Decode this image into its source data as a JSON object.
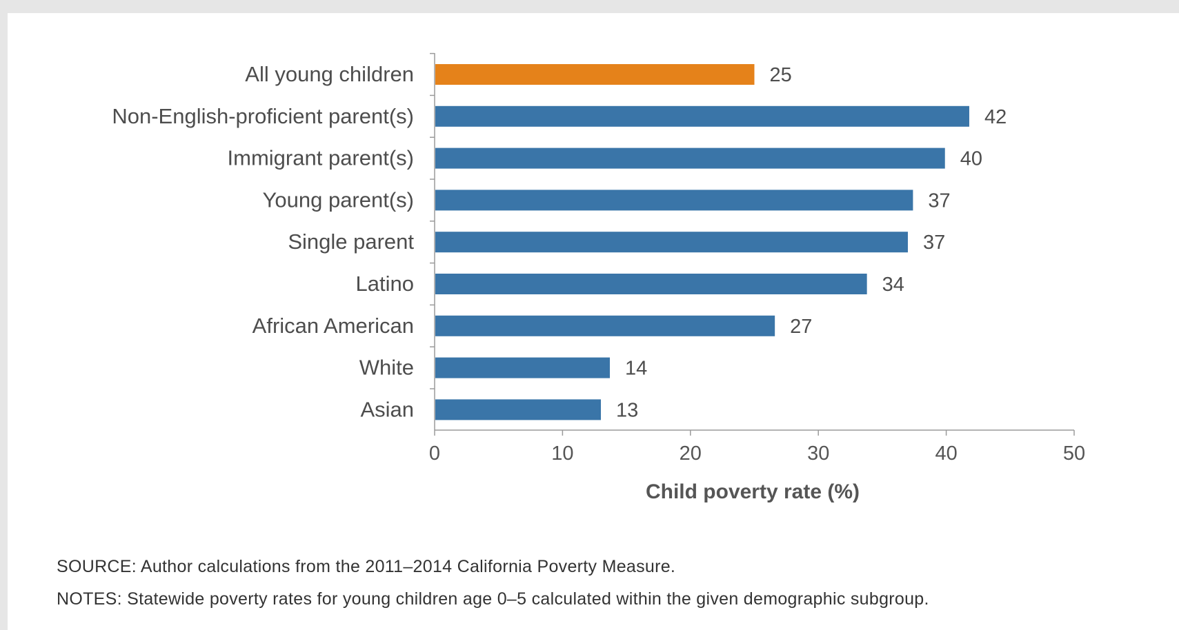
{
  "chart_data": {
    "type": "bar",
    "orientation": "horizontal",
    "categories": [
      "All young children",
      "Non-English-proficient parent(s)",
      "Immigrant parent(s)",
      "Young parent(s)",
      "Single parent",
      "Latino",
      "African American",
      "White",
      "Asian"
    ],
    "values": [
      25,
      41.8,
      39.9,
      37.4,
      37,
      33.8,
      26.6,
      13.7,
      13
    ],
    "value_labels": [
      "25",
      "42",
      "40",
      "37",
      "37",
      "34",
      "27",
      "14",
      "13"
    ],
    "highlight_index": 0,
    "colors": {
      "highlight": "#e5821a",
      "bar": "#3a75a8",
      "axis": "#9a9a9a"
    },
    "xlim": [
      0,
      50
    ],
    "xticks": [
      0,
      10,
      20,
      30,
      40,
      50
    ],
    "xlabel": "Child poverty rate (%)",
    "ylabel": "",
    "title": "",
    "grid": false,
    "legend": "none"
  },
  "notes": {
    "source": "SOURCE: Author calculations from the 2011–2014 California Poverty Measure.",
    "notes": "NOTES: Statewide poverty rates for young children age 0–5 calculated within the given demographic subgroup."
  }
}
